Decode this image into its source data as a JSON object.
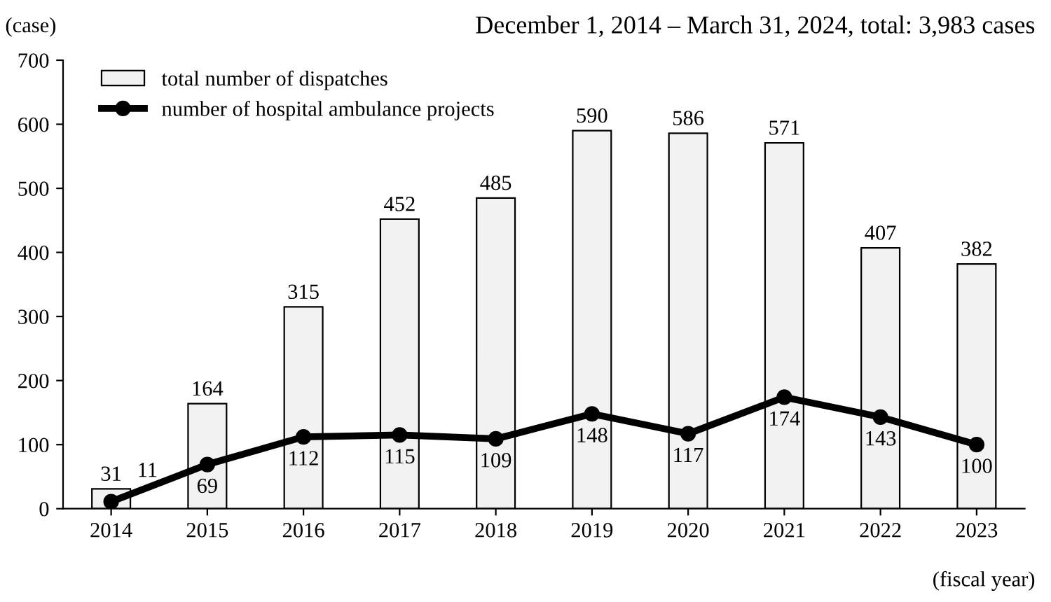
{
  "chart_data": {
    "type": "bar",
    "title": "December 1, 2014 – March 31, 2024, total: 3,983 cases",
    "ylabel": "(case)",
    "xlabel": "(fiscal year)",
    "categories": [
      "2014",
      "2015",
      "2016",
      "2017",
      "2018",
      "2019",
      "2020",
      "2021",
      "2022",
      "2023"
    ],
    "series": [
      {
        "name": "total number of dispatches",
        "color": "#f2f2f2",
        "values": [
          31,
          164,
          315,
          452,
          485,
          590,
          586,
          571,
          407,
          382
        ]
      },
      {
        "name": "number of hospital ambulance projects",
        "type": "line",
        "color": "#000000",
        "values": [
          11,
          69,
          112,
          115,
          109,
          148,
          117,
          174,
          143,
          100
        ]
      }
    ],
    "ylim": [
      0,
      700
    ],
    "yticks": [
      0,
      100,
      200,
      300,
      400,
      500,
      600,
      700
    ],
    "data_labels": true,
    "legend": "top left",
    "grid": false,
    "marker": "circle",
    "line_style": "solid"
  }
}
